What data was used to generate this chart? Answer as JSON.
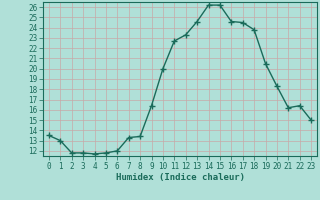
{
  "x": [
    0,
    1,
    2,
    3,
    4,
    5,
    6,
    7,
    8,
    9,
    10,
    11,
    12,
    13,
    14,
    15,
    16,
    17,
    18,
    19,
    20,
    21,
    22,
    23
  ],
  "y": [
    13.5,
    13.0,
    11.8,
    11.8,
    11.7,
    11.8,
    12.0,
    13.3,
    13.4,
    16.4,
    20.0,
    22.7,
    23.3,
    24.6,
    26.2,
    26.2,
    24.6,
    24.5,
    23.8,
    20.5,
    18.3,
    16.2,
    16.4,
    15.0
  ],
  "line_color": "#1a6b5a",
  "marker": "+",
  "marker_size": 4,
  "bg_color": "#b0e0d8",
  "grid_minor_color": "#90c8c0",
  "grid_major_color": "#c8a8a8",
  "xlabel": "Humidex (Indice chaleur)",
  "xlim": [
    -0.5,
    23.5
  ],
  "ylim": [
    11.5,
    26.5
  ],
  "yticks": [
    12,
    13,
    14,
    15,
    16,
    17,
    18,
    19,
    20,
    21,
    22,
    23,
    24,
    25,
    26
  ],
  "xticks": [
    0,
    1,
    2,
    3,
    4,
    5,
    6,
    7,
    8,
    9,
    10,
    11,
    12,
    13,
    14,
    15,
    16,
    17,
    18,
    19,
    20,
    21,
    22,
    23
  ],
  "font_color": "#1a6b5a",
  "line_width": 1.0
}
